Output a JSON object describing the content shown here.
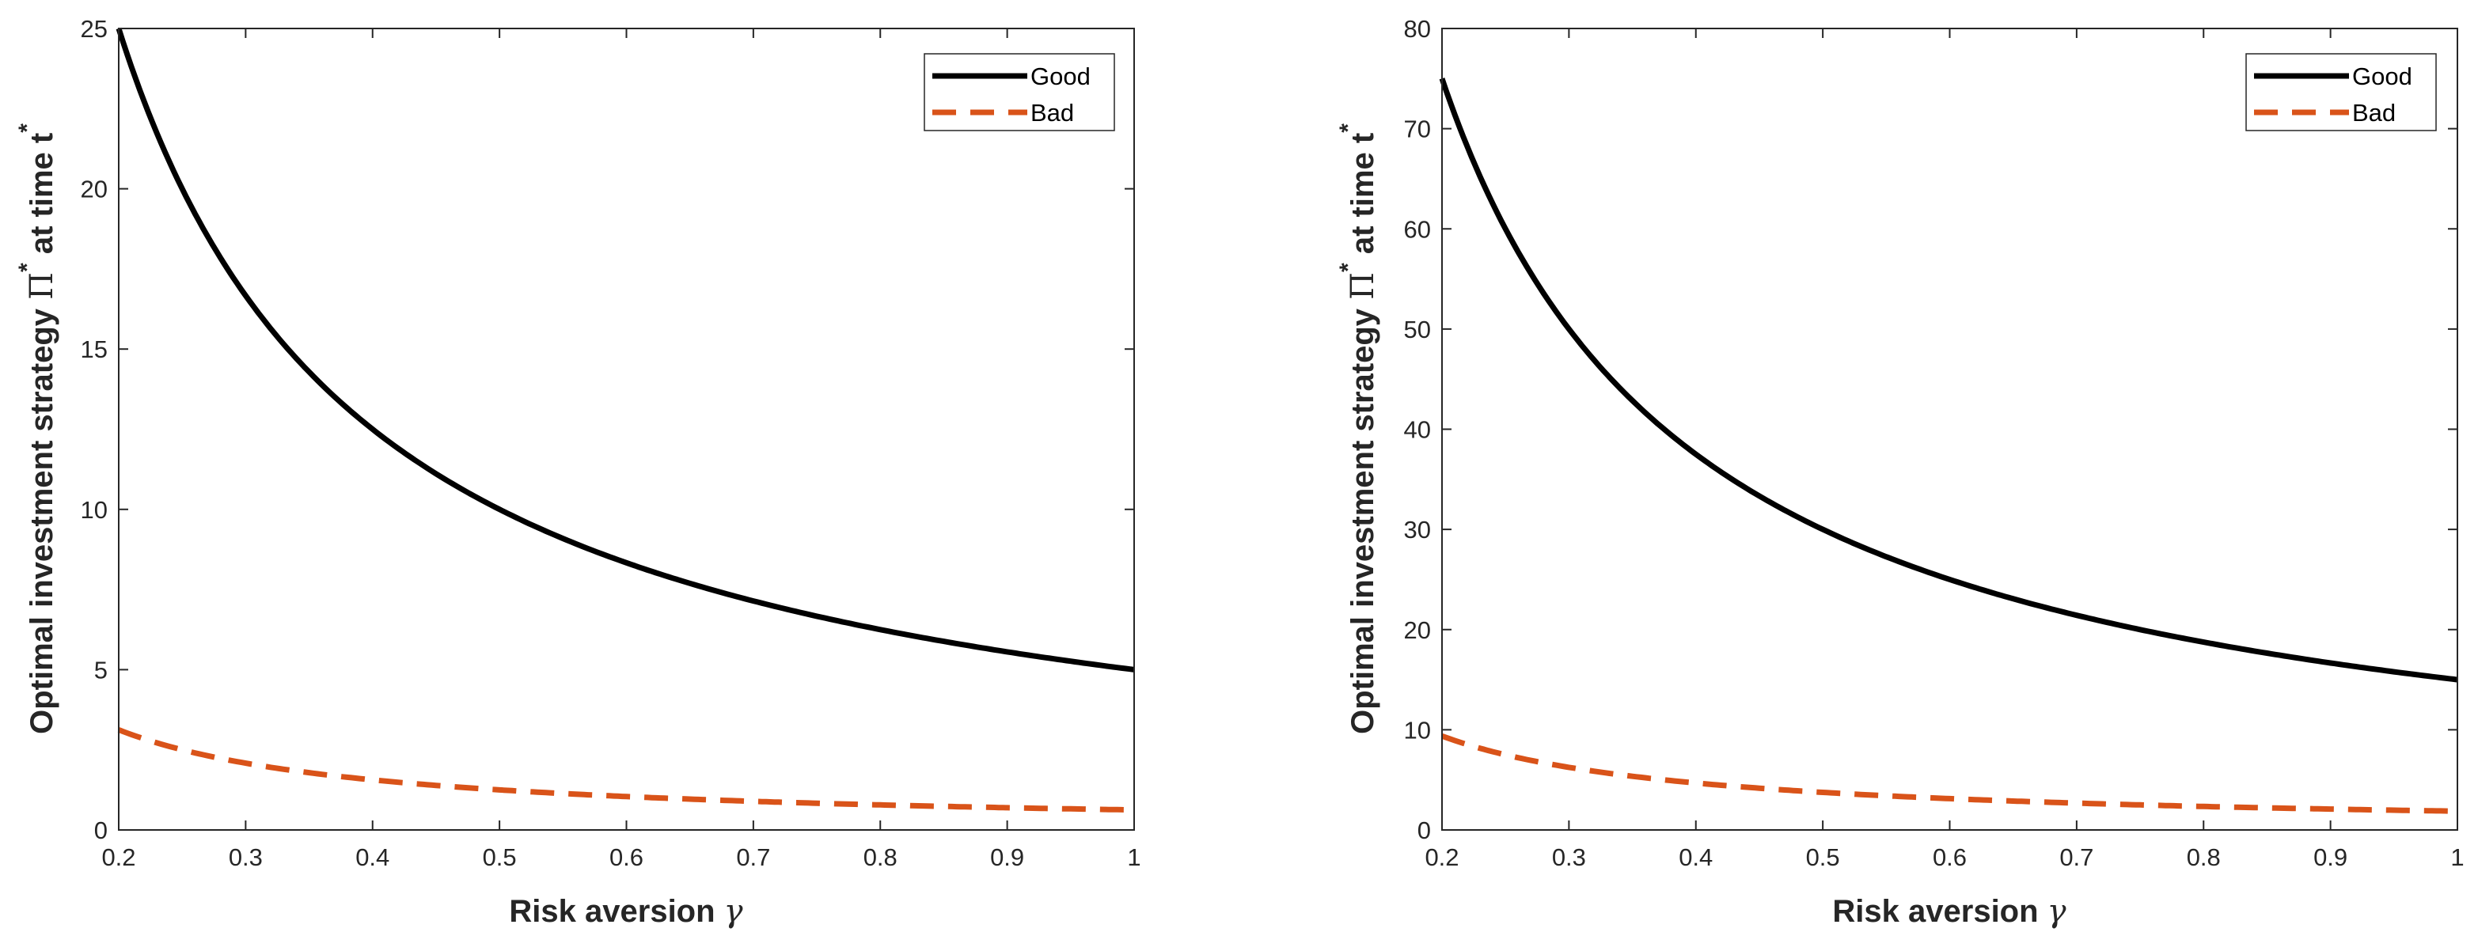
{
  "colors": {
    "good": "#000000",
    "bad": "#D95319",
    "axis": "#262626"
  },
  "chart_data": [
    {
      "type": "line",
      "title": "",
      "xlabel": "Risk aversion",
      "xlabel_symbol": "γ",
      "ylabel_prefix": "Optimal investment strategy",
      "ylabel_symbol": "Π",
      "ylabel_sup": "*",
      "ylabel_suffix": "at time t",
      "ylabel_sup2": "*",
      "xlim": [
        0.2,
        1
      ],
      "ylim": [
        0,
        25
      ],
      "xticks": [
        0.2,
        0.3,
        0.4,
        0.5,
        0.6,
        0.7,
        0.8,
        0.9,
        1
      ],
      "xtick_labels": [
        "0.2",
        "0.3",
        "0.4",
        "0.5",
        "0.6",
        "0.7",
        "0.8",
        "0.9",
        "1"
      ],
      "yticks": [
        0,
        5,
        10,
        15,
        20,
        25
      ],
      "ytick_labels": [
        "0",
        "5",
        "10",
        "15",
        "20",
        "25"
      ],
      "legend": {
        "position": "top-right",
        "entries": [
          "Good",
          "Bad"
        ]
      },
      "series": [
        {
          "name": "Good",
          "style": "solid",
          "formula": "a/x",
          "a": 5.0,
          "x": [
            0.2,
            0.3,
            0.4,
            0.5,
            0.6,
            0.7,
            0.8,
            0.9,
            1.0
          ],
          "values": [
            25.0,
            16.67,
            12.5,
            10.0,
            8.33,
            7.14,
            6.25,
            5.56,
            5.0
          ]
        },
        {
          "name": "Bad",
          "style": "dashed",
          "formula": "a/x",
          "a": 0.625,
          "x": [
            0.2,
            0.3,
            0.4,
            0.5,
            0.6,
            0.7,
            0.8,
            0.9,
            1.0
          ],
          "values": [
            3.1,
            2.08,
            1.56,
            1.25,
            1.04,
            0.89,
            0.78,
            0.69,
            0.63
          ]
        }
      ]
    },
    {
      "type": "line",
      "title": "",
      "xlabel": "Risk aversion",
      "xlabel_symbol": "γ",
      "ylabel_prefix": "Optimal investment strategy",
      "ylabel_symbol": "Π",
      "ylabel_sup": "*",
      "ylabel_suffix": "at time t",
      "ylabel_sup2": "*",
      "xlim": [
        0.2,
        1
      ],
      "ylim": [
        0,
        80
      ],
      "xticks": [
        0.2,
        0.3,
        0.4,
        0.5,
        0.6,
        0.7,
        0.8,
        0.9,
        1
      ],
      "xtick_labels": [
        "0.2",
        "0.3",
        "0.4",
        "0.5",
        "0.6",
        "0.7",
        "0.8",
        "0.9",
        "1"
      ],
      "yticks": [
        0,
        10,
        20,
        30,
        40,
        50,
        60,
        70,
        80
      ],
      "ytick_labels": [
        "0",
        "10",
        "20",
        "30",
        "40",
        "50",
        "60",
        "70",
        "80"
      ],
      "legend": {
        "position": "top-right",
        "entries": [
          "Good",
          "Bad"
        ]
      },
      "series": [
        {
          "name": "Good",
          "style": "solid",
          "formula": "a/x",
          "a": 15.0,
          "x": [
            0.2,
            0.3,
            0.4,
            0.5,
            0.6,
            0.7,
            0.8,
            0.9,
            1.0
          ],
          "values": [
            75.0,
            50.0,
            37.5,
            30.0,
            25.0,
            21.43,
            18.75,
            16.67,
            15.0
          ]
        },
        {
          "name": "Bad",
          "style": "dashed",
          "formula": "a/x",
          "a": 1.875,
          "x": [
            0.2,
            0.3,
            0.4,
            0.5,
            0.6,
            0.7,
            0.8,
            0.9,
            1.0
          ],
          "values": [
            9.4,
            6.25,
            4.69,
            3.75,
            3.13,
            2.68,
            2.34,
            2.08,
            1.88
          ]
        }
      ]
    }
  ]
}
